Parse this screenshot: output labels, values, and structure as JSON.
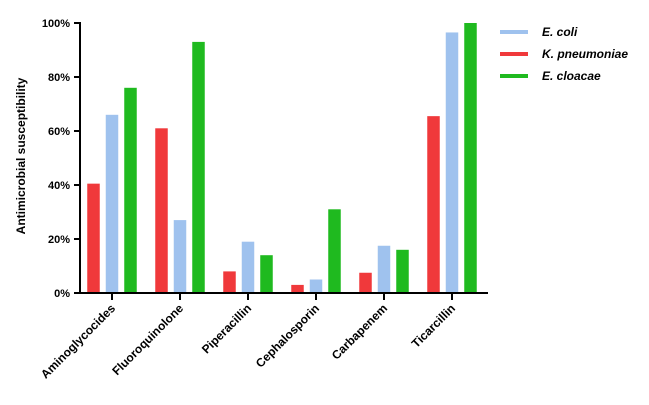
{
  "chart_data": {
    "type": "bar",
    "title": "",
    "xlabel": "",
    "ylabel": "Antimicrobial susceptibility",
    "ylim": [
      0,
      100
    ],
    "yticks": [
      "0%",
      "20%",
      "40%",
      "60%",
      "80%",
      "100%"
    ],
    "ytick_values": [
      0,
      20,
      40,
      60,
      80,
      100
    ],
    "grid": false,
    "legend_position": "top-right",
    "categories": [
      "Aminoglycocides",
      "Fluoroquinolone",
      "Piperacillin",
      "Cephalosporin",
      "Carbapenem",
      "Ticarcillin"
    ],
    "series": [
      {
        "name": "K. pneumoniae",
        "color": "#f0393b",
        "values": [
          40.5,
          61,
          8,
          3,
          7.5,
          65.5
        ]
      },
      {
        "name": "E. coli",
        "color": "#9fc2ee",
        "values": [
          66,
          27,
          19,
          5,
          17.5,
          96.5
        ]
      },
      {
        "name": "E. cloacae",
        "color": "#1fba1f",
        "values": [
          76,
          93,
          14,
          31,
          16,
          100
        ]
      }
    ],
    "legend_order": [
      "E. coli",
      "K. pneumoniae",
      "E. cloacae"
    ]
  }
}
